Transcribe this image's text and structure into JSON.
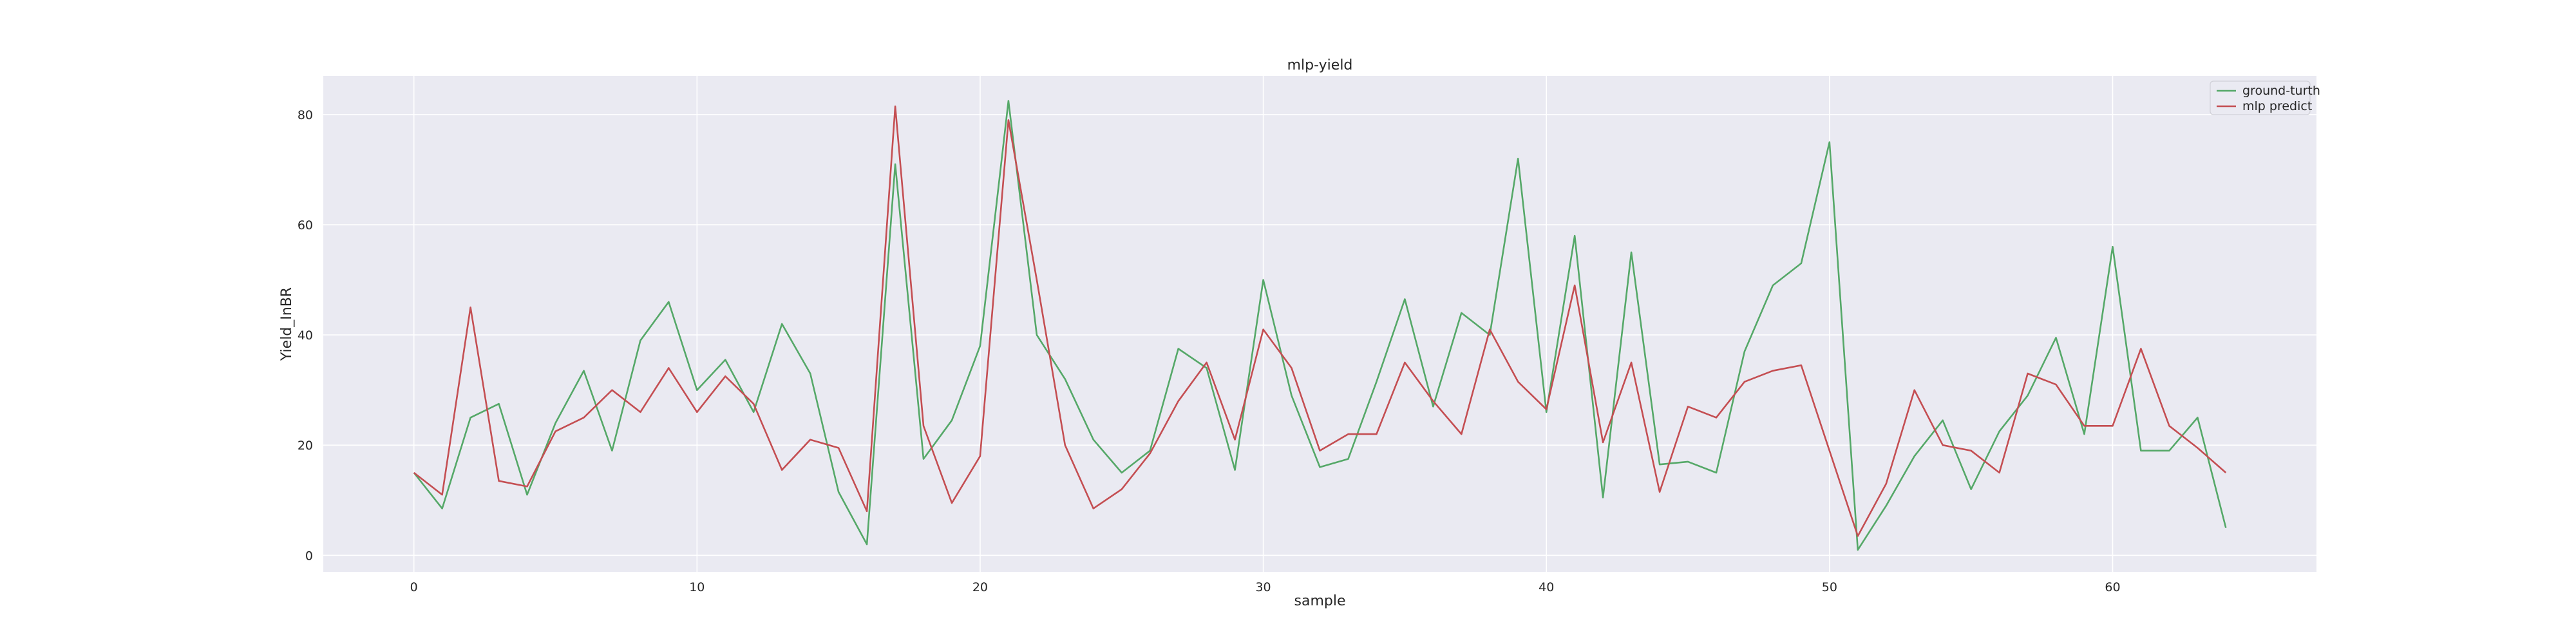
{
  "chart_data": {
    "type": "line",
    "title": "mlp-yield",
    "xlabel": "sample",
    "ylabel": "Yield_InBR",
    "xlim": [
      -3.2,
      67.2
    ],
    "ylim": [
      -3,
      87
    ],
    "xticks": [
      0,
      10,
      20,
      30,
      40,
      50,
      60
    ],
    "yticks": [
      0,
      20,
      40,
      60,
      80
    ],
    "grid": true,
    "legend_position": "top-right",
    "background": "#eaeaf2",
    "x": [
      0,
      1,
      2,
      3,
      4,
      5,
      6,
      7,
      8,
      9,
      10,
      11,
      12,
      13,
      14,
      15,
      16,
      17,
      18,
      19,
      20,
      21,
      22,
      23,
      24,
      25,
      26,
      27,
      28,
      29,
      30,
      31,
      32,
      33,
      34,
      35,
      36,
      37,
      38,
      39,
      40,
      41,
      42,
      43,
      44,
      45,
      46,
      47,
      48,
      49,
      50,
      51,
      52,
      53,
      54,
      55,
      56,
      57,
      58,
      59,
      60,
      61,
      62,
      63,
      64
    ],
    "series": [
      {
        "name": "ground-turth",
        "color": "#55a868",
        "values": [
          15,
          8.5,
          25,
          27.5,
          11,
          24,
          33.5,
          19,
          39,
          46,
          30,
          35.5,
          26,
          42,
          33,
          11.5,
          2,
          71,
          17.5,
          24.5,
          38,
          82.5,
          40,
          32,
          21,
          15,
          19,
          37.5,
          34,
          15.5,
          50,
          29,
          16,
          17.5,
          31.5,
          46.5,
          27,
          44,
          40,
          72,
          26,
          58,
          10.5,
          55,
          16.5,
          17,
          15,
          37,
          49,
          53,
          75,
          1,
          9,
          18,
          24.5,
          12,
          22.5,
          29,
          39.5,
          22,
          56,
          19,
          19,
          25,
          5
        ]
      },
      {
        "name": "mlp predict",
        "color": "#c44e52",
        "values": [
          15,
          11,
          45,
          13.5,
          12.5,
          22.5,
          25,
          30,
          26,
          34,
          26,
          32.5,
          27.5,
          15.5,
          21,
          19.5,
          8,
          81.5,
          23.5,
          9.5,
          18,
          79,
          50,
          20,
          8.5,
          12,
          18.5,
          28,
          35,
          21,
          41,
          34,
          19,
          22,
          22,
          35,
          28,
          22,
          41,
          31.5,
          26.5,
          49,
          20.5,
          35,
          11.5,
          27,
          25,
          31.5,
          33.5,
          34.5,
          19,
          3.5,
          13,
          30,
          20,
          19,
          15,
          33,
          31,
          23.5,
          23.5,
          37.5,
          23.5,
          19.5,
          15
        ]
      }
    ]
  }
}
